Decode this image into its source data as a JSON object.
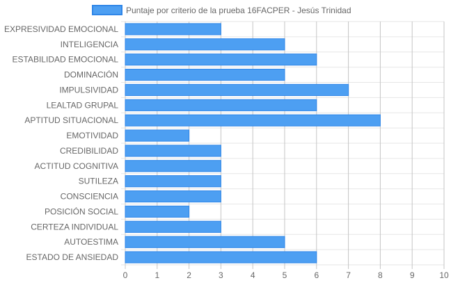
{
  "chart_data": {
    "type": "bar",
    "orientation": "horizontal",
    "categories": [
      "EXPRESIVIDAD EMOCIONAL",
      "INTELIGENCIA",
      "ESTABILIDAD EMOCIONAL",
      "DOMINACIÓN",
      "IMPULSIVIDAD",
      "LEALTAD GRUPAL",
      "APTITUD SITUACIONAL",
      "EMOTIVIDAD",
      "CREDIBILIDAD",
      "ACTITUD COGNITIVA",
      "SUTILEZA",
      "CONSCIENCIA",
      "POSICIÓN SOCIAL",
      "CERTEZA INDIVIDUAL",
      "AUTOESTIMA",
      "ESTADO DE ANSIEDAD"
    ],
    "series": [
      {
        "name": "Puntaje por criterio de la prueba 16FACPER - Jesús Trinidad",
        "values": [
          3,
          5,
          6,
          5,
          7,
          6,
          8,
          2,
          3,
          3,
          3,
          3,
          2,
          3,
          5,
          6
        ],
        "color": "#4d9ff2",
        "border_color": "#2f86e8"
      }
    ],
    "x_ticks": [
      "0",
      "1",
      "2",
      "3",
      "4",
      "5",
      "6",
      "7",
      "8",
      "9",
      "10"
    ],
    "xlim": [
      0,
      10
    ],
    "grid": true,
    "legend_position": "top-center",
    "title": "",
    "xlabel": "",
    "ylabel": ""
  }
}
